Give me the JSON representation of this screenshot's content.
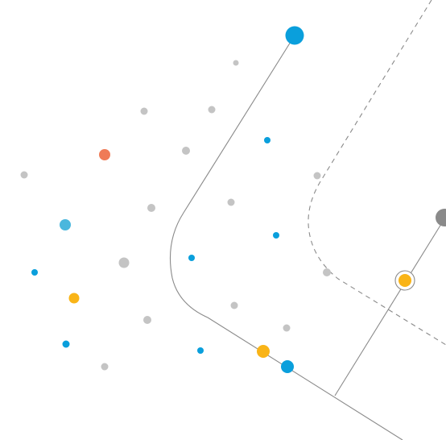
{
  "palette": {
    "background": "#ffffff",
    "line": "#8a8a8a",
    "dashed_line": "#8a8a8a",
    "gray_dot": "#c4c4c4",
    "blue": "#0a9fdc",
    "light_blue": "#4ab7dd",
    "orange": "#ef7b57",
    "yellow": "#f9b417",
    "dark_gray": "#8a8a8a"
  },
  "elements": {
    "solid_path": "connector-line",
    "dashed_path": "dashed-connector-line",
    "highlighted_node": "target-node"
  }
}
